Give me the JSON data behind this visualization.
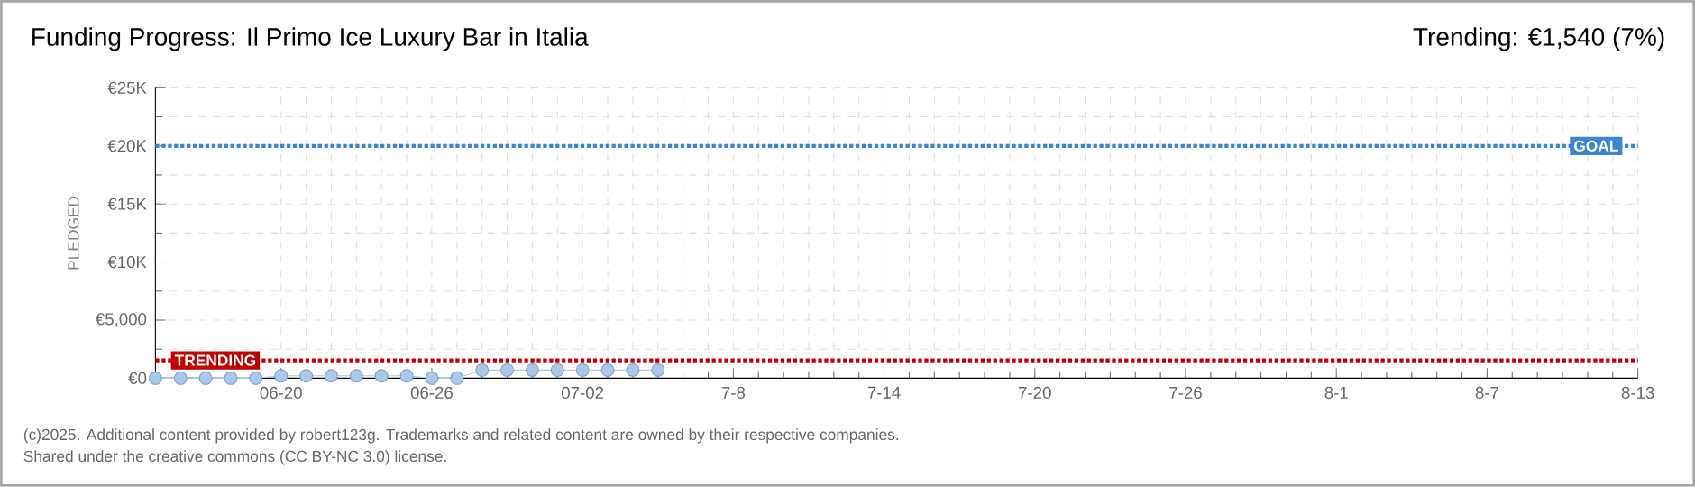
{
  "chart_data": {
    "type": "line",
    "title": "Funding Progress: Il Primo Ice Luxury Bar in Italia",
    "subtitle": "Trending: €1,540 (7%)",
    "ylabel": "PLEDGED",
    "annotations": [
      "(c)2025. Additional content provided by robert123g. Trademarks and related content are owned by their respective companies.",
      "Shared under the creative commons (CC BY-NC 3.0) license."
    ],
    "x": [
      "2025-06-15",
      "2025-06-16",
      "2025-06-17",
      "2025-06-18",
      "2025-06-19",
      "2025-06-20",
      "2025-06-21",
      "2025-06-22",
      "2025-06-23",
      "2025-06-24",
      "2025-06-25",
      "2025-06-26",
      "2025-06-27",
      "2025-06-28",
      "2025-06-29",
      "2025-06-30",
      "2025-07-01",
      "2025-07-02",
      "2025-07-03",
      "2025-07-04",
      "2025-07-05"
    ],
    "series": [
      {
        "color": "#a8c8ee",
        "values": [
          0,
          0,
          0,
          0,
          0,
          200,
          200,
          200,
          200,
          200,
          200,
          0,
          0,
          700,
          700,
          700,
          700,
          700,
          700,
          700,
          700
        ]
      }
    ],
    "marker": "circle",
    "grid": true,
    "xlim": [
      "2025-06-15",
      "2025-08-13"
    ],
    "xticks": [
      {
        "value": "2025-06-20",
        "label": "06-20"
      },
      {
        "value": "2025-06-26",
        "label": "06-26"
      },
      {
        "value": "2025-07-02",
        "label": "07-02"
      },
      {
        "value": "2025-07-08",
        "label": "7-8"
      },
      {
        "value": "2025-07-14",
        "label": "7-14"
      },
      {
        "value": "2025-07-20",
        "label": "7-20"
      },
      {
        "value": "2025-07-26",
        "label": "7-26"
      },
      {
        "value": "2025-08-01",
        "label": "8-1"
      },
      {
        "value": "2025-08-07",
        "label": "8-7"
      },
      {
        "value": "2025-08-13",
        "label": "8-13"
      }
    ],
    "ylim": [
      0,
      25000
    ],
    "yticks": [
      {
        "value": 0,
        "label": "€0"
      },
      {
        "value": 5000,
        "label": "€5,000"
      },
      {
        "value": 10000,
        "label": "€10K"
      },
      {
        "value": 15000,
        "label": "€15K"
      },
      {
        "value": 20000,
        "label": "€20K"
      },
      {
        "value": 25000,
        "label": "€25K"
      }
    ],
    "ref_lines": [
      {
        "axis": "y",
        "value": 1540,
        "label": "TRENDING",
        "color": "#c00000",
        "line_style": "dotted"
      },
      {
        "axis": "y",
        "value": 20000,
        "label": "GOAL",
        "color": "#3a86d4",
        "line_style": "dotted"
      }
    ]
  }
}
